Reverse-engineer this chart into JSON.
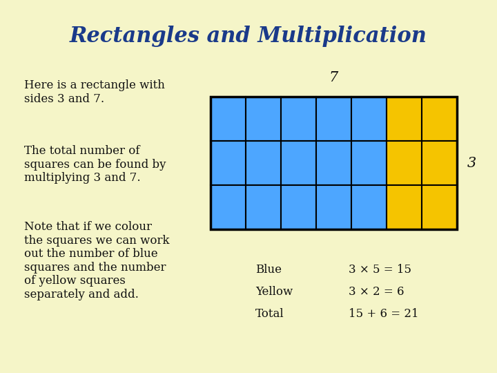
{
  "title": "Rectangles and Multiplication",
  "title_color": "#1a3a8a",
  "title_fontsize": 22,
  "background_color": "#f5f5c8",
  "text1": "Here is a rectangle with\nsides 3 and 7.",
  "text2": "The total number of\nsquares can be found by\nmultiplying 3 and 7.",
  "text3": "Note that if we colour\nthe squares we can work\nout the number of blue\nsquares and the number\nof yellow squares\nseparately and add.",
  "text_color": "#111111",
  "text_fontsize": 12,
  "blue_color": "#4da6ff",
  "yellow_color": "#f5c400",
  "grid_color": "#000000",
  "num_rows": 3,
  "num_blue_cols": 5,
  "num_yellow_cols": 2,
  "bottom_labels": [
    "Blue",
    "Yellow",
    "Total"
  ],
  "bottom_values": [
    "3 × 5 = 15",
    "3 × 2 = 6",
    "15 + 6 = 21"
  ]
}
